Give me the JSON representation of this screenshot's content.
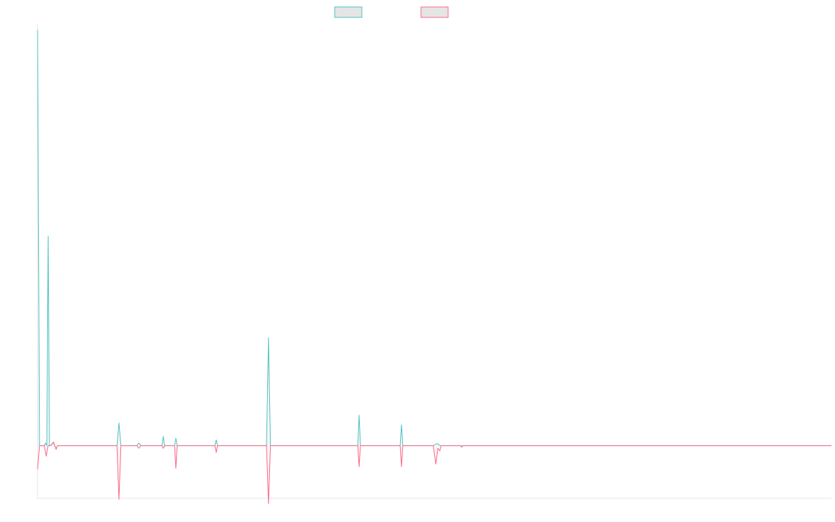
{
  "chart_data": {
    "type": "line",
    "title": "",
    "xlabel": "",
    "ylabel": "",
    "grid": false,
    "legend_position": "top-center",
    "xlim": [
      0,
      120
    ],
    "ylim": [
      -100,
      800
    ],
    "series": [
      {
        "color": "#4bc0c0",
        "fill": "#e5e5e5",
        "points": [
          [
            0,
            790
          ],
          [
            0.3,
            0
          ],
          [
            1,
            0
          ],
          [
            1.2,
            5
          ],
          [
            1.4,
            0
          ],
          [
            1.6,
            398
          ],
          [
            1.8,
            0
          ],
          [
            2,
            0
          ],
          [
            2.4,
            7
          ],
          [
            2.6,
            0
          ],
          [
            2.8,
            -7
          ],
          [
            3,
            0
          ],
          [
            12,
            0
          ],
          [
            12.3,
            43
          ],
          [
            12.6,
            0
          ],
          [
            15,
            0
          ],
          [
            15.3,
            5
          ],
          [
            15.6,
            0
          ],
          [
            18.8,
            0
          ],
          [
            19,
            18
          ],
          [
            19.2,
            0
          ],
          [
            20.7,
            0
          ],
          [
            20.9,
            14
          ],
          [
            21.1,
            0
          ],
          [
            26.8,
            0
          ],
          [
            27,
            11
          ],
          [
            27.2,
            0
          ],
          [
            34.6,
            0
          ],
          [
            34.9,
            205
          ],
          [
            35.2,
            0
          ],
          [
            48.4,
            0
          ],
          [
            48.6,
            58
          ],
          [
            48.8,
            0
          ],
          [
            54.8,
            0
          ],
          [
            55,
            40
          ],
          [
            55.2,
            0
          ],
          [
            59.8,
            0
          ],
          [
            60.4,
            4
          ],
          [
            60.7,
            1
          ],
          [
            61,
            0
          ],
          [
            120,
            0
          ]
        ]
      },
      {
        "color": "#ff6384",
        "fill": "#e5e5e5",
        "points": [
          [
            0,
            -45
          ],
          [
            0.3,
            0
          ],
          [
            1,
            0
          ],
          [
            1.3,
            -20
          ],
          [
            1.6,
            0
          ],
          [
            2,
            0
          ],
          [
            2.4,
            7
          ],
          [
            2.6,
            0
          ],
          [
            2.8,
            -7
          ],
          [
            3,
            0
          ],
          [
            12,
            0
          ],
          [
            12.3,
            -102
          ],
          [
            12.6,
            0
          ],
          [
            15,
            0
          ],
          [
            15.3,
            -5
          ],
          [
            15.6,
            0
          ],
          [
            18.8,
            0
          ],
          [
            19,
            -5
          ],
          [
            19.2,
            0
          ],
          [
            20.7,
            0
          ],
          [
            20.9,
            -43
          ],
          [
            21.1,
            0
          ],
          [
            26.8,
            0
          ],
          [
            27,
            -13
          ],
          [
            27.2,
            0
          ],
          [
            34.6,
            0
          ],
          [
            34.9,
            -110
          ],
          [
            35.2,
            0
          ],
          [
            48.4,
            0
          ],
          [
            48.6,
            -40
          ],
          [
            48.8,
            0
          ],
          [
            54.8,
            0
          ],
          [
            55,
            -40
          ],
          [
            55.2,
            0
          ],
          [
            59.8,
            0
          ],
          [
            60.2,
            -35
          ],
          [
            60.5,
            -5
          ],
          [
            60.8,
            -10
          ],
          [
            61,
            0
          ],
          [
            63.9,
            0
          ],
          [
            64.1,
            -3
          ],
          [
            64.3,
            0
          ],
          [
            120,
            0
          ]
        ]
      }
    ]
  }
}
